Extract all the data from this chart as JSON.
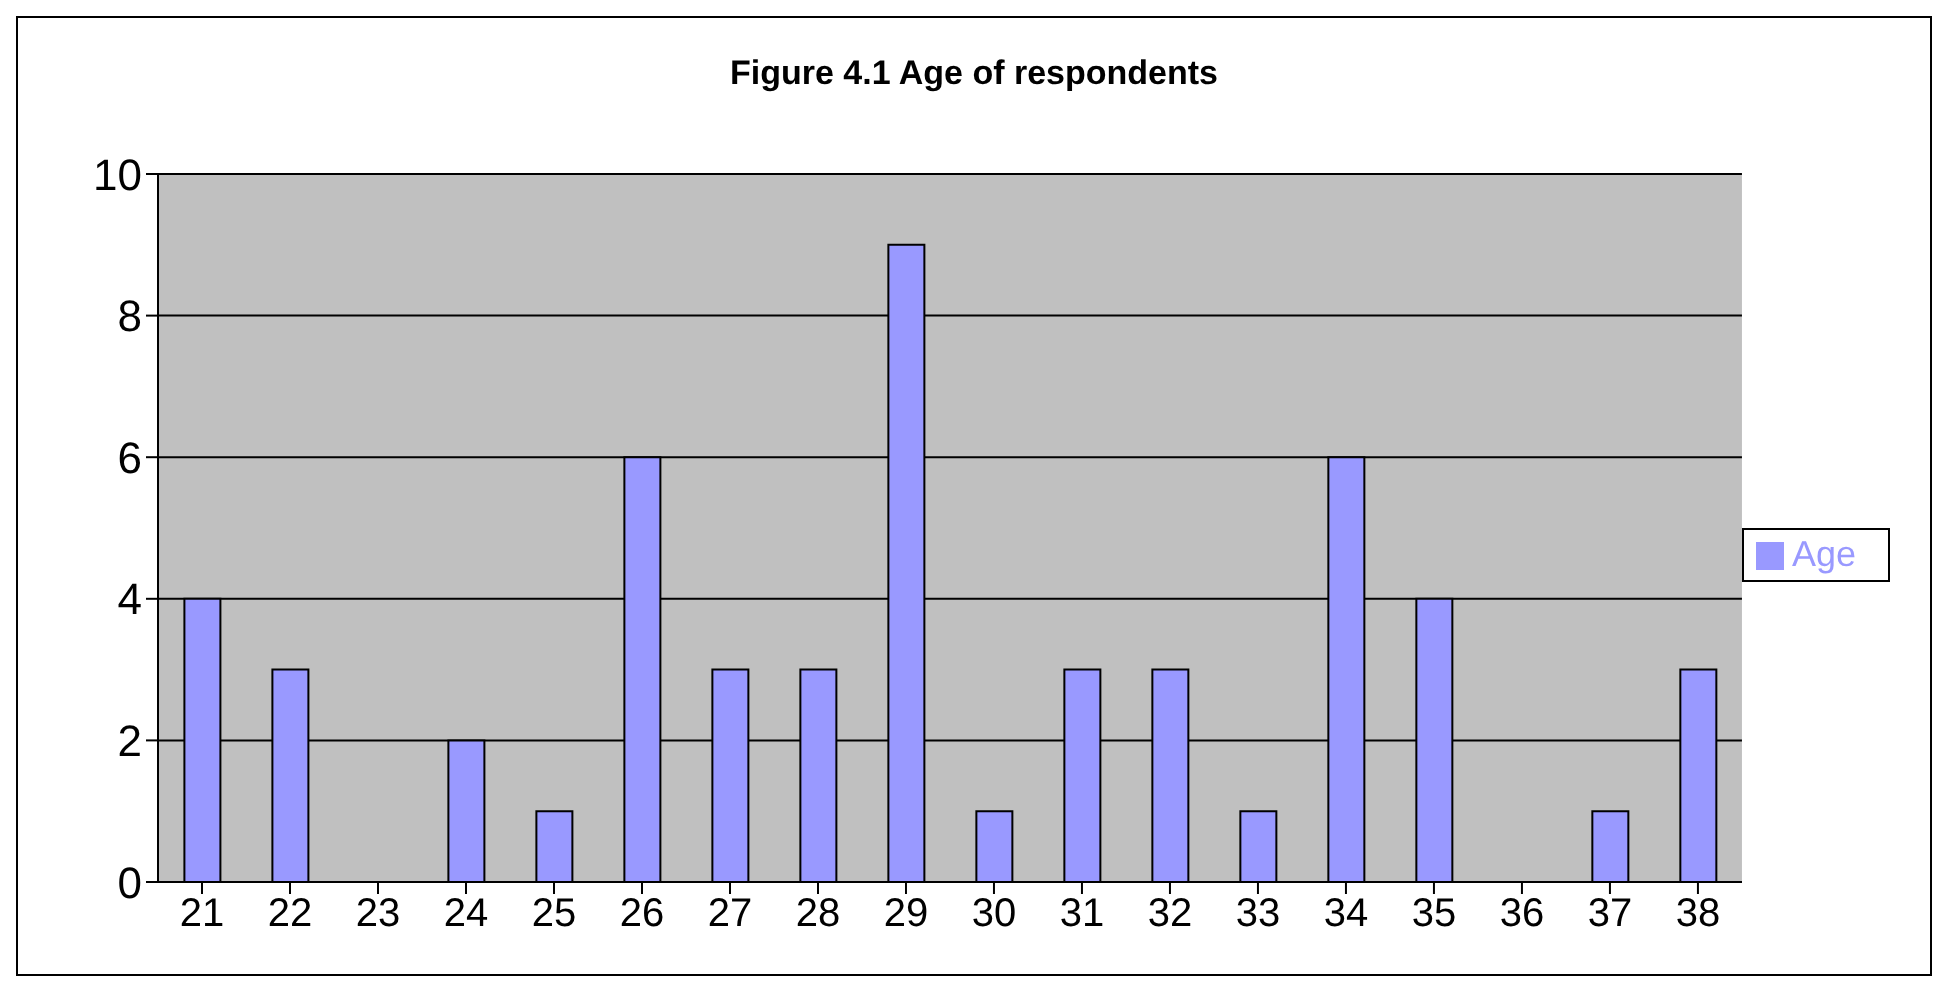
{
  "chart_data": {
    "type": "bar",
    "title": "Figure 4.1 Age of respondents",
    "categories": [
      "21",
      "22",
      "23",
      "24",
      "25",
      "26",
      "27",
      "28",
      "29",
      "30",
      "31",
      "32",
      "33",
      "34",
      "35",
      "36",
      "37",
      "38"
    ],
    "series": [
      {
        "name": "Age",
        "color": "#9999ff",
        "values": [
          4,
          3,
          0,
          2,
          1,
          6,
          3,
          3,
          9,
          1,
          3,
          3,
          1,
          6,
          4,
          0,
          1,
          3
        ]
      }
    ],
    "ylim": [
      0,
      10
    ],
    "yticks": [
      0,
      2,
      4,
      6,
      8,
      10
    ],
    "grid": "y",
    "legend": "right"
  }
}
